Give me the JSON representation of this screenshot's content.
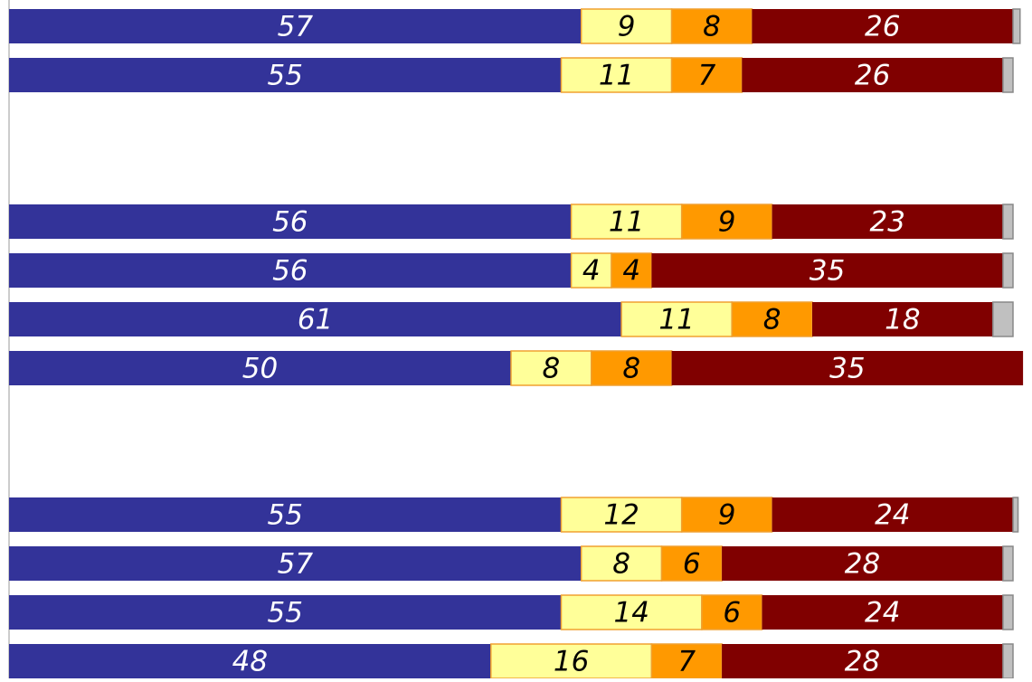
{
  "chart_data": {
    "type": "stacked-bar-horizontal",
    "categories": [
      null,
      null,
      null,
      null,
      null,
      null,
      null,
      null,
      null,
      null,
      null,
      null,
      null,
      null
    ],
    "xlim": [
      0,
      100
    ],
    "series": [
      {
        "color": "#333399",
        "label_color": "#ffffff",
        "show_labels": true,
        "values": [
          57,
          55,
          null,
          null,
          56,
          56,
          61,
          50,
          null,
          null,
          55,
          57,
          55,
          48
        ]
      },
      {
        "color": "#ffff99",
        "label_color": "#000000",
        "show_labels": true,
        "values": [
          9,
          11,
          null,
          null,
          11,
          4,
          11,
          8,
          null,
          null,
          12,
          8,
          14,
          16
        ]
      },
      {
        "color": "#ff9900",
        "label_color": "#000000",
        "show_labels": true,
        "values": [
          8,
          7,
          null,
          null,
          9,
          4,
          8,
          8,
          null,
          null,
          9,
          6,
          6,
          7
        ]
      },
      {
        "color": "#800000",
        "label_color": "#ffffff",
        "show_labels": true,
        "values": [
          26,
          26,
          null,
          null,
          23,
          35,
          18,
          35,
          null,
          null,
          24,
          28,
          24,
          28
        ]
      },
      {
        "color": "#c0c0c0",
        "label_color": "#000000",
        "show_labels": false,
        "values": [
          0.7,
          1,
          null,
          null,
          1,
          1,
          2,
          null,
          null,
          null,
          0.5,
          1,
          1,
          1
        ]
      }
    ]
  }
}
